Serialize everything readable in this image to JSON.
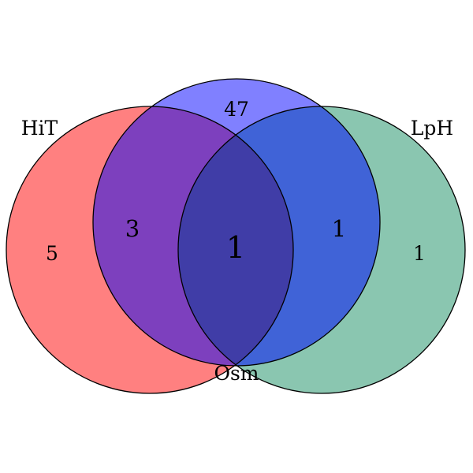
{
  "sets": [
    {
      "name": "HiT",
      "color": "#ff8080"
    },
    {
      "name": "Osm",
      "color": "#8080ff"
    },
    {
      "name": "LpH",
      "color": "#8ac6b0"
    }
  ],
  "regions": {
    "hit_only": "5",
    "osm_only": "47",
    "lph_only": "1",
    "hit_osm": "3",
    "osm_lph": "1",
    "all_three": "1"
  },
  "region_colors": {
    "hit_osm": "#7d40be",
    "osm_lph": "#4063d7",
    "hit_lph": "#5b5b9f",
    "all_three": "#403da7"
  }
}
